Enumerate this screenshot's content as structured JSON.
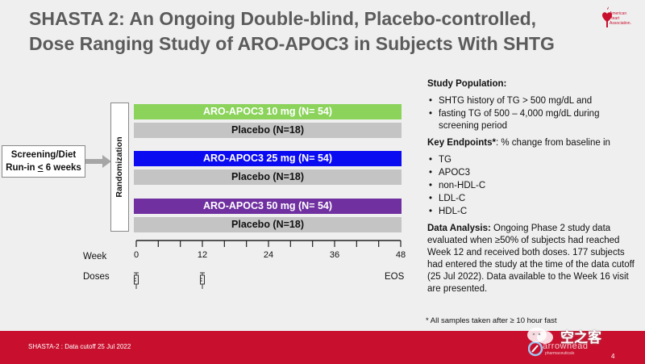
{
  "title": {
    "line1": "SHASTA 2: An Ongoing Double-blind, Placebo-controlled,",
    "line2": "Dose Ranging Study of ARO-APOC3 in Subjects With SHTG"
  },
  "logo": {
    "name": "American Heart Association",
    "line1": "American",
    "line2": "Heart",
    "line3": "Association."
  },
  "design": {
    "screening_line1": "Screening/Diet",
    "screening_line2_pre": "Run-in ",
    "screening_line2_ul": "<",
    "screening_line2_post": " 6 weeks",
    "randomization": "Randomization",
    "arms": [
      {
        "label": "ARO-APOC3 10 mg (N= 54)",
        "color": "#8bd35b"
      },
      {
        "label": "Placebo (N=18)",
        "color": "#c4c4c4"
      },
      {
        "label": "ARO-APOC3 25 mg (N= 54)",
        "color": "#0b0bf2"
      },
      {
        "label": "Placebo (N=18)",
        "color": "#c4c4c4"
      },
      {
        "label": "ARO-APOC3 50 mg (N= 54)",
        "color": "#7030a0"
      },
      {
        "label": "Placebo (N=18)",
        "color": "#c4c4c4"
      }
    ],
    "week_label": "Week",
    "doses_label": "Doses",
    "week_max": 48,
    "weeks": [
      0,
      12,
      24,
      36,
      48
    ],
    "dose_weeks": [
      0,
      12
    ],
    "eos_label": "EOS"
  },
  "right": {
    "population_heading": "Study Population:",
    "population_items": [
      "SHTG history of TG > 500 mg/dL and",
      "fasting TG of 500 – 4,000 mg/dL during screening period"
    ],
    "endpoints_heading": "Key Endpoints*",
    "endpoints_rest": ": % change from baseline in",
    "endpoints_items": [
      "TG",
      "APOC3",
      "non-HDL-C",
      "LDL-C",
      "HDL-C"
    ],
    "analysis_heading": "Data Analysis:",
    "analysis_text": " Ongoing Phase 2 study data evaluated when ≥50% of subjects had reached Week 12 and received both doses. 177 subjects had entered the study at the time of the data cutoff (25 Jul 2022). Data available to the Week 16 visit are presented."
  },
  "footnote": "* All samples taken after ≥ 10 hour fast",
  "footer": {
    "text": "SHASTA-2 : Data cutoff 25 Jul 2022",
    "brand": "arrowhead",
    "brand_sub": "pharmaceuticals",
    "page": "4",
    "watermark": "空之客"
  },
  "colors": {
    "title": "#5b5b5b",
    "footer": "#c8102e"
  }
}
